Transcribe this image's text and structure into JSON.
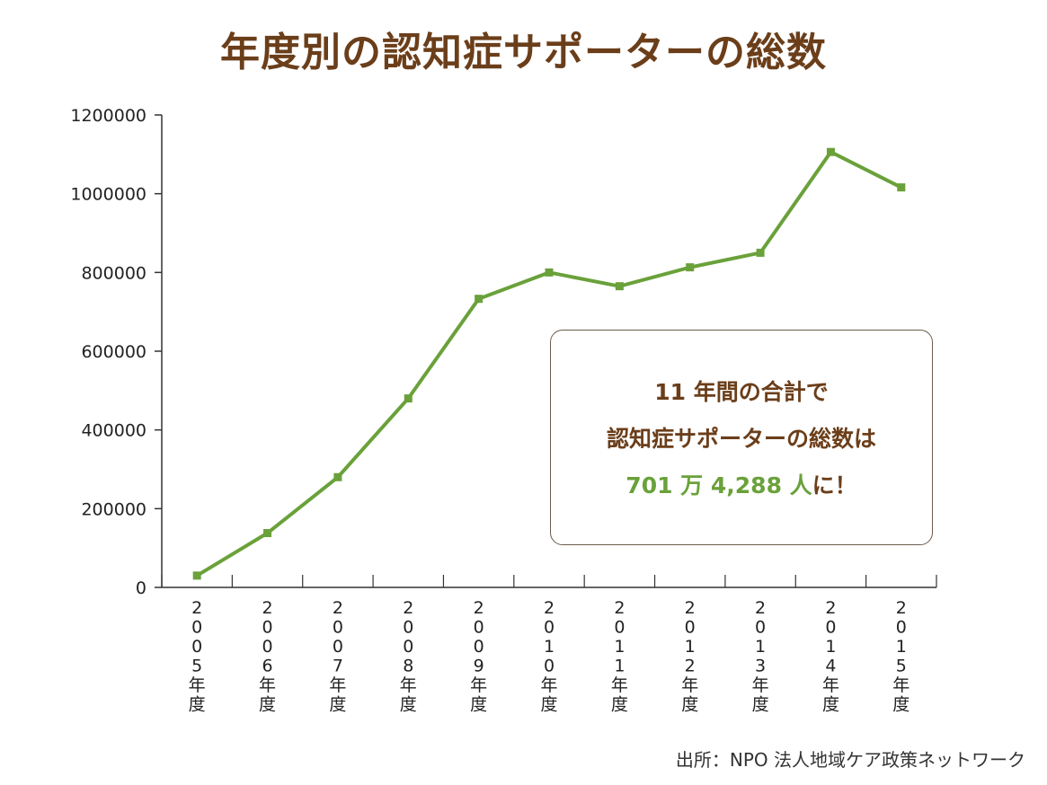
{
  "chart_data": {
    "type": "line",
    "title": "年度別の認知症サポーターの総数",
    "categories": [
      "2005年度",
      "2006年度",
      "2007年度",
      "2008年度",
      "2009年度",
      "2010年度",
      "2011年度",
      "2012年度",
      "2013年度",
      "2014年度",
      "2015年度"
    ],
    "values": [
      30000,
      138000,
      280000,
      480000,
      733000,
      800000,
      765000,
      813000,
      850000,
      1106000,
      1016000
    ],
    "ylim": [
      0,
      1200000
    ],
    "yticks": [
      0,
      200000,
      400000,
      600000,
      800000,
      1000000,
      1200000
    ],
    "xlabel": "",
    "ylabel": "",
    "grid": false,
    "legend": "none",
    "line_color": "#6aa13a"
  },
  "callout": {
    "line1": "11 年間の合計で",
    "line2": "認知症サポーターの総数は",
    "line3_highlight": "701 万 4,288 人",
    "line3_rest": "に！"
  },
  "source": "出所：NPO 法人地域ケア政策ネットワーク",
  "colors": {
    "title": "#6b3e1a",
    "accent": "#6aa13a",
    "axis": "#333333"
  }
}
